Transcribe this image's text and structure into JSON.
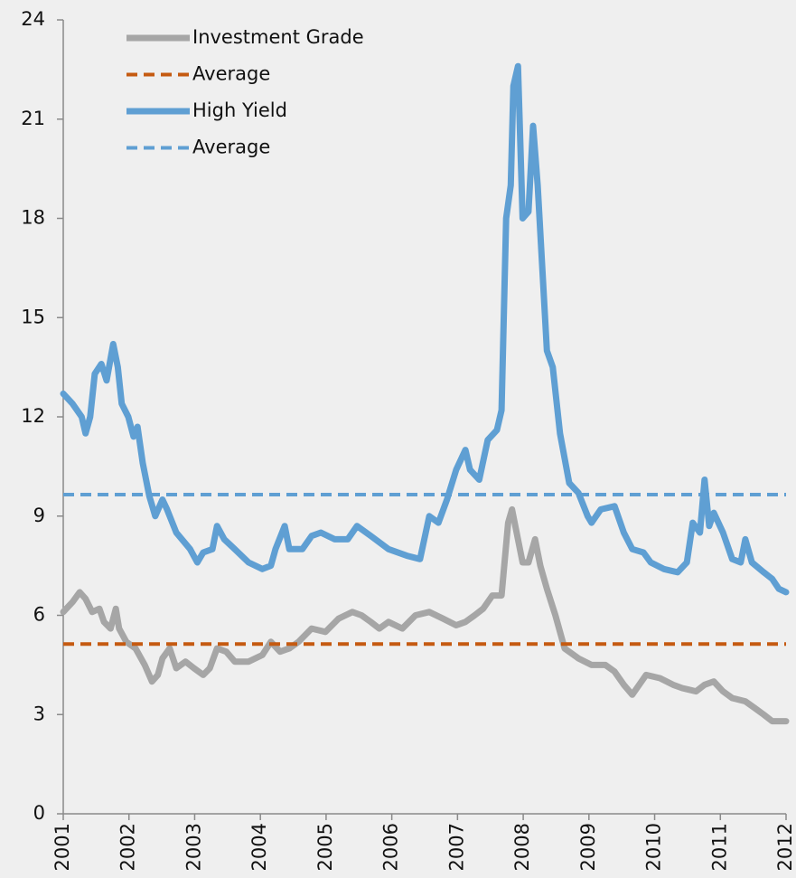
{
  "chart_data": {
    "type": "line",
    "xlim": [
      2001,
      2012
    ],
    "xticks": [
      2001,
      2002,
      2003,
      2004,
      2005,
      2006,
      2007,
      2008,
      2009,
      2010,
      2011,
      2012
    ],
    "ylim": [
      0,
      24
    ],
    "yticks": [
      0,
      3,
      6,
      9,
      12,
      15,
      18,
      21,
      24
    ],
    "legend": "top-left",
    "series": [
      {
        "name": "Investment Grade",
        "color": "#a6a6a6",
        "style": "solid",
        "x": [
          2001,
          2001.14,
          2001.25,
          2001.34,
          2001.44,
          2001.55,
          2001.62,
          2001.72,
          2001.8,
          2001.85,
          2001.96,
          2002.1,
          2002.24,
          2002.35,
          2002.44,
          2002.51,
          2002.62,
          2002.72,
          2002.86,
          2002.99,
          2003.13,
          2003.23,
          2003.34,
          2003.48,
          2003.61,
          2003.82,
          2004.03,
          2004.16,
          2004.3,
          2004.44,
          2004.58,
          2004.78,
          2004.99,
          2005.19,
          2005.4,
          2005.54,
          2005.68,
          2005.81,
          2005.95,
          2006.16,
          2006.36,
          2006.57,
          2006.78,
          2006.98,
          2007.12,
          2007.26,
          2007.39,
          2007.53,
          2007.67,
          2007.77,
          2007.83,
          2007.9,
          2007.99,
          2008.08,
          2008.18,
          2008.26,
          2008.36,
          2008.49,
          2008.63,
          2008.84,
          2009.04,
          2009.25,
          2009.39,
          2009.53,
          2009.66,
          2009.87,
          2010.08,
          2010.28,
          2010.42,
          2010.63,
          2010.76,
          2010.9,
          2011.04,
          2011.18,
          2011.38,
          2011.52,
          2011.66,
          2011.79,
          2012
        ],
        "values": [
          6.1,
          6.4,
          6.7,
          6.5,
          6.1,
          6.2,
          5.8,
          5.6,
          6.2,
          5.6,
          5.2,
          5.0,
          4.5,
          4.0,
          4.2,
          4.7,
          5.0,
          4.4,
          4.6,
          4.4,
          4.2,
          4.4,
          5.0,
          4.9,
          4.6,
          4.6,
          4.8,
          5.2,
          4.9,
          5.0,
          5.2,
          5.6,
          5.5,
          5.9,
          6.1,
          6.0,
          5.8,
          5.6,
          5.8,
          5.6,
          6.0,
          6.1,
          5.9,
          5.7,
          5.8,
          6.0,
          6.2,
          6.6,
          6.6,
          8.8,
          9.2,
          8.5,
          7.6,
          7.6,
          8.3,
          7.5,
          6.8,
          6.0,
          5.0,
          4.7,
          4.5,
          4.5,
          4.3,
          3.9,
          3.6,
          4.2,
          4.1,
          3.9,
          3.8,
          3.7,
          3.9,
          4.0,
          3.7,
          3.5,
          3.4,
          3.2,
          3.0,
          2.8,
          2.8
        ]
      },
      {
        "name": "Average",
        "color": "#c55a11",
        "style": "dashed",
        "x": [
          2001,
          2012
        ],
        "values": [
          5.13,
          5.13
        ]
      },
      {
        "name": "High Yield",
        "color": "#5f9fd3",
        "style": "solid",
        "x": [
          2001,
          2001.14,
          2001.28,
          2001.34,
          2001.41,
          2001.48,
          2001.58,
          2001.66,
          2001.76,
          2001.83,
          2001.89,
          2001.99,
          2002.07,
          2002.13,
          2002.21,
          2002.31,
          2002.4,
          2002.51,
          2002.58,
          2002.72,
          2002.93,
          2003.04,
          2003.13,
          2003.27,
          2003.34,
          2003.45,
          2003.61,
          2003.82,
          2004.03,
          2004.16,
          2004.23,
          2004.37,
          2004.44,
          2004.64,
          2004.78,
          2004.92,
          2005.13,
          2005.33,
          2005.47,
          2005.68,
          2005.95,
          2006.23,
          2006.43,
          2006.57,
          2006.71,
          2006.84,
          2006.98,
          2007.12,
          2007.19,
          2007.33,
          2007.46,
          2007.6,
          2007.67,
          2007.74,
          2007.81,
          2007.85,
          2007.92,
          2007.99,
          2008.08,
          2008.15,
          2008.22,
          2008.29,
          2008.36,
          2008.45,
          2008.56,
          2008.7,
          2008.84,
          2008.98,
          2009.04,
          2009.18,
          2009.39,
          2009.53,
          2009.66,
          2009.83,
          2009.94,
          2010.14,
          2010.35,
          2010.49,
          2010.58,
          2010.69,
          2010.76,
          2010.83,
          2010.9,
          2011.04,
          2011.18,
          2011.31,
          2011.38,
          2011.48,
          2011.66,
          2011.79,
          2011.89,
          2012
        ],
        "values": [
          12.7,
          12.4,
          12.0,
          11.5,
          12.0,
          13.3,
          13.6,
          13.1,
          14.2,
          13.5,
          12.4,
          12.0,
          11.4,
          11.7,
          10.6,
          9.6,
          9.0,
          9.5,
          9.2,
          8.5,
          8.0,
          7.6,
          7.9,
          8.0,
          8.7,
          8.3,
          8.0,
          7.6,
          7.4,
          7.5,
          8.0,
          8.7,
          8.0,
          8.0,
          8.4,
          8.5,
          8.3,
          8.3,
          8.7,
          8.4,
          8.0,
          7.8,
          7.7,
          9.0,
          8.8,
          9.5,
          10.4,
          11.0,
          10.4,
          10.1,
          11.3,
          11.6,
          12.2,
          18.0,
          19.0,
          22.0,
          22.6,
          18.0,
          18.2,
          20.8,
          19.0,
          16.5,
          14.0,
          13.5,
          11.5,
          10.0,
          9.7,
          9.0,
          8.8,
          9.2,
          9.3,
          8.5,
          8.0,
          7.9,
          7.6,
          7.4,
          7.3,
          7.6,
          8.8,
          8.5,
          10.1,
          8.7,
          9.1,
          8.5,
          7.7,
          7.6,
          8.3,
          7.6,
          7.3,
          7.1,
          6.8,
          6.7
        ]
      },
      {
        "name": "Average",
        "color": "#5f9fd3",
        "style": "dashed",
        "x": [
          2001,
          2012
        ],
        "values": [
          9.65,
          9.65
        ]
      }
    ]
  }
}
